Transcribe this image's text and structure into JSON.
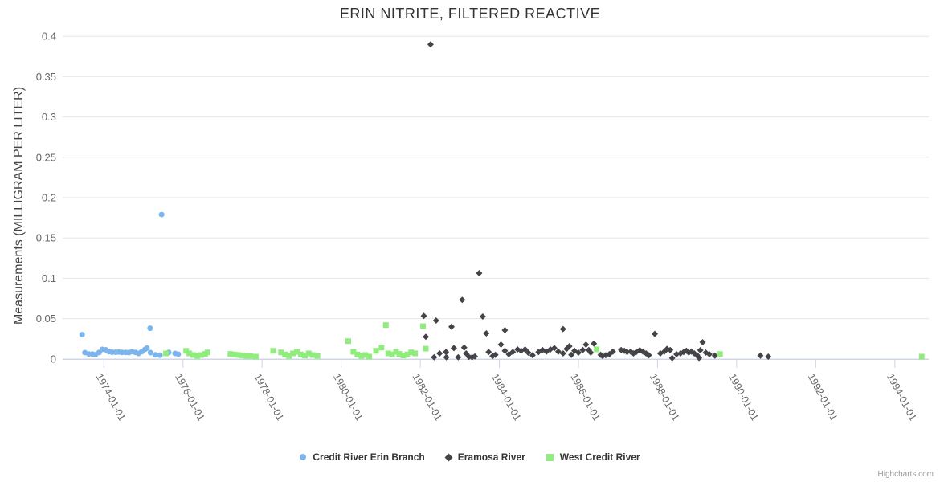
{
  "chart_data": {
    "type": "scatter",
    "title": "ERIN NITRITE, FILTERED REACTIVE",
    "xlabel": "",
    "ylabel": "Measurements (MILLIGRAM PER LITER)",
    "ylim": [
      0,
      0.4
    ],
    "xlim": [
      1972.95,
      1994.85
    ],
    "grid": "horizontal",
    "legend_position": "bottom",
    "credit": "Highcharts.com",
    "y_ticks": [
      0,
      0.05,
      0.1,
      0.15,
      0.2,
      0.25,
      0.3,
      0.35,
      0.4
    ],
    "y_tick_labels": [
      "0",
      "0.05",
      "0.1",
      "0.15",
      "0.2",
      "0.25",
      "0.3",
      "0.35",
      "0.4"
    ],
    "x_ticks": [
      1974,
      1976,
      1978,
      1980,
      1982,
      1984,
      1986,
      1988,
      1990,
      1992,
      1994
    ],
    "x_tick_labels": [
      "1974-01-01",
      "1976-01-01",
      "1978-01-01",
      "1980-01-01",
      "1982-01-01",
      "1984-01-01",
      "1986-01-01",
      "1988-01-01",
      "1990-01-01",
      "1992-01-01",
      "1994-01-01"
    ],
    "series": [
      {
        "name": "Credit River Erin Branch",
        "marker": "circle",
        "color": "#7cb5ec",
        "points": [
          [
            1973.45,
            0.03
          ],
          [
            1973.52,
            0.0078
          ],
          [
            1973.62,
            0.006
          ],
          [
            1973.71,
            0.006
          ],
          [
            1973.79,
            0.0053
          ],
          [
            1973.88,
            0.008
          ],
          [
            1973.96,
            0.0118
          ],
          [
            1974.05,
            0.0113
          ],
          [
            1974.13,
            0.009
          ],
          [
            1974.21,
            0.0083
          ],
          [
            1974.3,
            0.0083
          ],
          [
            1974.38,
            0.0085
          ],
          [
            1974.46,
            0.008
          ],
          [
            1974.55,
            0.008
          ],
          [
            1974.63,
            0.0078
          ],
          [
            1974.71,
            0.009
          ],
          [
            1974.8,
            0.008
          ],
          [
            1974.88,
            0.0068
          ],
          [
            1974.96,
            0.009
          ],
          [
            1975.04,
            0.0118
          ],
          [
            1975.09,
            0.0134
          ],
          [
            1975.17,
            0.038
          ],
          [
            1975.18,
            0.0078
          ],
          [
            1975.3,
            0.005
          ],
          [
            1975.42,
            0.0045
          ],
          [
            1975.46,
            0.179
          ],
          [
            1975.64,
            0.008
          ],
          [
            1975.8,
            0.0068
          ],
          [
            1975.88,
            0.0058
          ]
        ]
      },
      {
        "name": "Eramosa River",
        "marker": "diamond",
        "color": "#434348",
        "points": [
          [
            1982.09,
            0.0533
          ],
          [
            1982.14,
            0.0274
          ],
          [
            1982.26,
            0.39
          ],
          [
            1982.35,
            0.002
          ],
          [
            1982.4,
            0.0476
          ],
          [
            1982.49,
            0.0068
          ],
          [
            1982.65,
            0.0085
          ],
          [
            1982.66,
            0.002
          ],
          [
            1982.79,
            0.0399
          ],
          [
            1982.85,
            0.0134
          ],
          [
            1982.96,
            0.002
          ],
          [
            1983.06,
            0.0732
          ],
          [
            1983.11,
            0.014
          ],
          [
            1983.16,
            0.0068
          ],
          [
            1983.23,
            0.0025
          ],
          [
            1983.31,
            0.002
          ],
          [
            1983.38,
            0.003
          ],
          [
            1983.49,
            0.1064
          ],
          [
            1983.58,
            0.0526
          ],
          [
            1983.67,
            0.0317
          ],
          [
            1983.73,
            0.0085
          ],
          [
            1983.83,
            0.0035
          ],
          [
            1983.9,
            0.005
          ],
          [
            1984.04,
            0.0177
          ],
          [
            1984.14,
            0.0357
          ],
          [
            1984.14,
            0.01
          ],
          [
            1984.24,
            0.0058
          ],
          [
            1984.34,
            0.0085
          ],
          [
            1984.46,
            0.0118
          ],
          [
            1984.55,
            0.01
          ],
          [
            1984.65,
            0.0118
          ],
          [
            1984.73,
            0.0078
          ],
          [
            1984.84,
            0.0045
          ],
          [
            1984.99,
            0.0085
          ],
          [
            1985.09,
            0.011
          ],
          [
            1985.19,
            0.009
          ],
          [
            1985.29,
            0.0118
          ],
          [
            1985.39,
            0.0134
          ],
          [
            1985.49,
            0.009
          ],
          [
            1985.61,
            0.037
          ],
          [
            1985.61,
            0.0068
          ],
          [
            1985.7,
            0.0124
          ],
          [
            1985.77,
            0.0157
          ],
          [
            1985.82,
            0.005
          ],
          [
            1985.9,
            0.01
          ],
          [
            1986.0,
            0.0078
          ],
          [
            1986.11,
            0.011
          ],
          [
            1986.19,
            0.0177
          ],
          [
            1986.26,
            0.011
          ],
          [
            1986.31,
            0.0078
          ],
          [
            1986.39,
            0.019
          ],
          [
            1986.56,
            0.005
          ],
          [
            1986.61,
            0.0035
          ],
          [
            1986.69,
            0.0045
          ],
          [
            1986.78,
            0.0058
          ],
          [
            1986.87,
            0.009
          ],
          [
            1987.08,
            0.011
          ],
          [
            1987.16,
            0.01
          ],
          [
            1987.23,
            0.0085
          ],
          [
            1987.32,
            0.009
          ],
          [
            1987.39,
            0.0068
          ],
          [
            1987.46,
            0.0085
          ],
          [
            1987.55,
            0.0108
          ],
          [
            1987.63,
            0.009
          ],
          [
            1987.71,
            0.0068
          ],
          [
            1987.78,
            0.0045
          ],
          [
            1987.93,
            0.031
          ],
          [
            1988.07,
            0.0068
          ],
          [
            1988.17,
            0.009
          ],
          [
            1988.24,
            0.0124
          ],
          [
            1988.32,
            0.011
          ],
          [
            1988.37,
            0.001
          ],
          [
            1988.48,
            0.0058
          ],
          [
            1988.58,
            0.0068
          ],
          [
            1988.66,
            0.0085
          ],
          [
            1988.73,
            0.01
          ],
          [
            1988.79,
            0.0078
          ],
          [
            1988.86,
            0.009
          ],
          [
            1988.93,
            0.0068
          ],
          [
            1989.0,
            0.0045
          ],
          [
            1989.05,
            0.0012
          ],
          [
            1989.08,
            0.0108
          ],
          [
            1989.14,
            0.0207
          ],
          [
            1989.22,
            0.0078
          ],
          [
            1989.31,
            0.0058
          ],
          [
            1989.45,
            0.004
          ],
          [
            1990.6,
            0.004
          ],
          [
            1990.8,
            0.0028
          ]
        ]
      },
      {
        "name": "West Credit River",
        "marker": "square",
        "color": "#90ed7d",
        "points": [
          [
            1975.57,
            0.0068
          ],
          [
            1976.08,
            0.01
          ],
          [
            1976.16,
            0.0068
          ],
          [
            1976.26,
            0.0048
          ],
          [
            1976.36,
            0.0035
          ],
          [
            1976.46,
            0.0048
          ],
          [
            1976.56,
            0.0061
          ],
          [
            1976.62,
            0.008
          ],
          [
            1977.2,
            0.0061
          ],
          [
            1977.3,
            0.0055
          ],
          [
            1977.4,
            0.0048
          ],
          [
            1977.5,
            0.0041
          ],
          [
            1977.6,
            0.0035
          ],
          [
            1977.7,
            0.0035
          ],
          [
            1977.84,
            0.0028
          ],
          [
            1978.28,
            0.01
          ],
          [
            1978.48,
            0.008
          ],
          [
            1978.58,
            0.0055
          ],
          [
            1978.68,
            0.0035
          ],
          [
            1978.78,
            0.0068
          ],
          [
            1978.88,
            0.0088
          ],
          [
            1978.98,
            0.0055
          ],
          [
            1979.08,
            0.0041
          ],
          [
            1979.18,
            0.0068
          ],
          [
            1979.28,
            0.0048
          ],
          [
            1979.4,
            0.0035
          ],
          [
            1980.18,
            0.022
          ],
          [
            1980.31,
            0.0088
          ],
          [
            1980.41,
            0.0055
          ],
          [
            1980.51,
            0.0035
          ],
          [
            1980.61,
            0.0048
          ],
          [
            1980.71,
            0.0028
          ],
          [
            1980.88,
            0.01
          ],
          [
            1981.02,
            0.014
          ],
          [
            1981.13,
            0.042
          ],
          [
            1981.19,
            0.0068
          ],
          [
            1981.29,
            0.0055
          ],
          [
            1981.39,
            0.0088
          ],
          [
            1981.47,
            0.0061
          ],
          [
            1981.57,
            0.0041
          ],
          [
            1981.67,
            0.0055
          ],
          [
            1981.77,
            0.0081
          ],
          [
            1981.87,
            0.0068
          ],
          [
            1982.07,
            0.0406
          ],
          [
            1982.14,
            0.0127
          ],
          [
            1986.46,
            0.0118
          ],
          [
            1989.58,
            0.006
          ],
          [
            1994.68,
            0.0028
          ]
        ]
      }
    ],
    "colors": {
      "grid": "#e6e6e6",
      "axis_line": "#ccd6eb",
      "tick_label": "#666666",
      "title": "#333333"
    }
  }
}
